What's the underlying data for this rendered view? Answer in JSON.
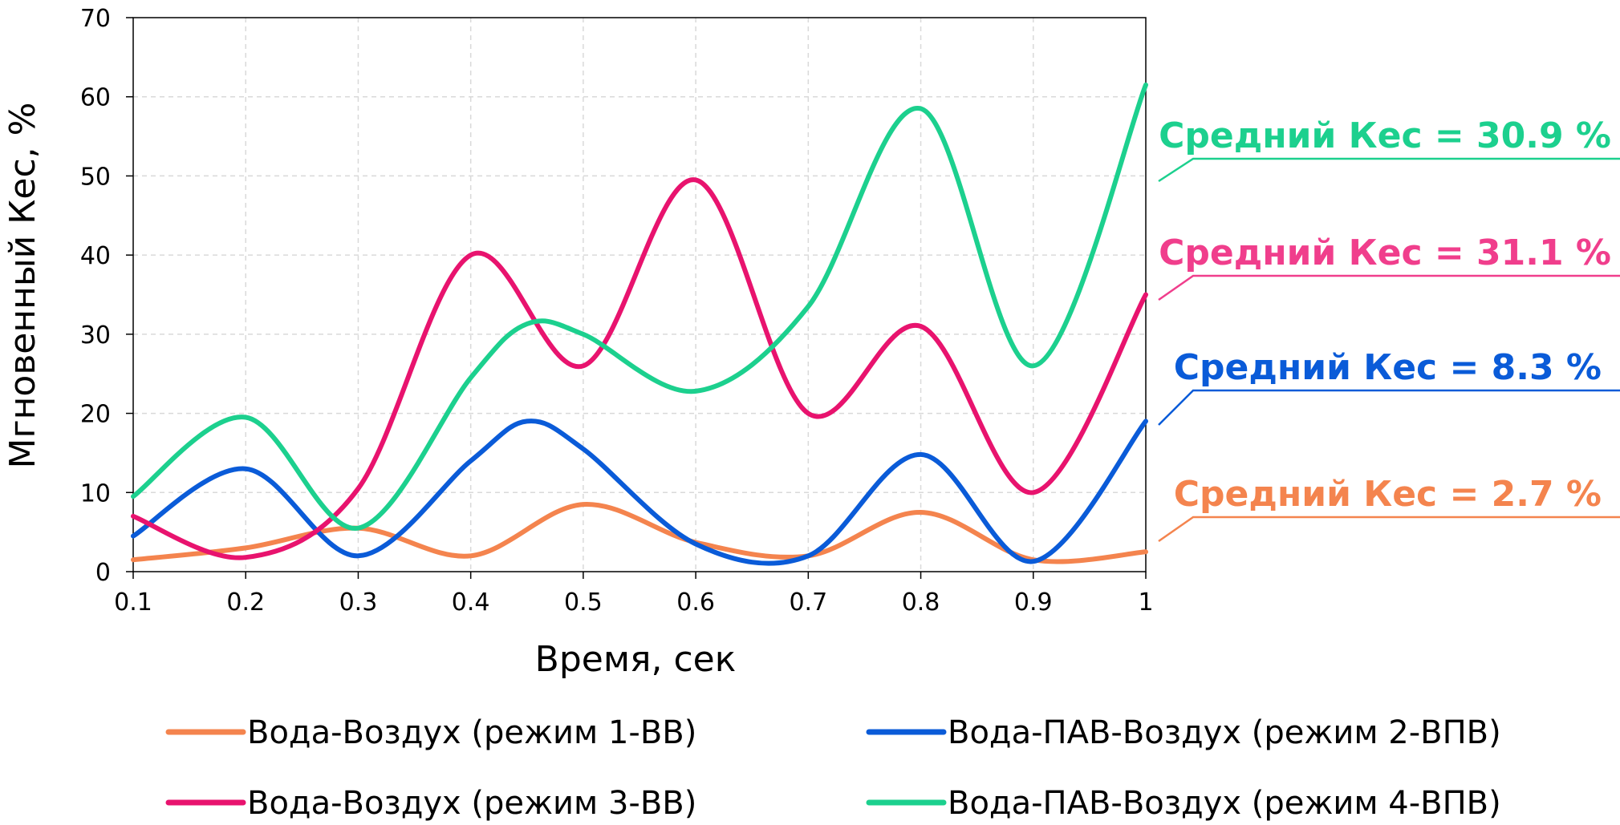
{
  "chart_data": {
    "type": "line",
    "xlabel": "Время, сек",
    "ylabel": "Мгновенный Кес, %",
    "xlim": [
      0.1,
      1.0
    ],
    "ylim": [
      0,
      70
    ],
    "x_ticks": [
      0.1,
      0.2,
      0.3,
      0.4,
      0.5,
      0.6,
      0.7,
      0.8,
      0.9,
      1.0
    ],
    "x_tick_labels": [
      "0.1",
      "0.2",
      "0.3",
      "0.4",
      "0.5",
      "0.6",
      "0.7",
      "0.8",
      "0.9",
      "1"
    ],
    "y_ticks": [
      0,
      10,
      20,
      30,
      40,
      50,
      60,
      70
    ],
    "y_tick_labels": [
      "0",
      "10",
      "20",
      "30",
      "40",
      "50",
      "60",
      "70"
    ],
    "grid": true,
    "legend_position": "bottom",
    "series": [
      {
        "name": "Вода-Воздух (режим 1-ВВ)",
        "color": "#F4844E",
        "x": [
          0.1,
          0.2,
          0.3,
          0.4,
          0.5,
          0.6,
          0.7,
          0.8,
          0.9,
          1.0
        ],
        "y": [
          1.5,
          3.0,
          5.5,
          2.0,
          8.5,
          3.7,
          2.0,
          7.5,
          1.5,
          2.5
        ]
      },
      {
        "name": "Вода-ПАВ-Воздух (режим 2-ВПВ)",
        "color": "#0A5BD8",
        "x": [
          0.1,
          0.2,
          0.3,
          0.4,
          0.45,
          0.5,
          0.6,
          0.7,
          0.8,
          0.9,
          1.0
        ],
        "y": [
          4.5,
          13.0,
          2.0,
          14.0,
          19.0,
          15.5,
          3.5,
          2.0,
          14.8,
          1.3,
          19.0
        ]
      },
      {
        "name": "Вода-Воздух (режим 3-ВВ)",
        "color": "#E8136E",
        "x": [
          0.1,
          0.2,
          0.3,
          0.4,
          0.5,
          0.6,
          0.7,
          0.8,
          0.9,
          1.0
        ],
        "y": [
          7.0,
          1.8,
          10.5,
          40.0,
          26.0,
          49.5,
          20.0,
          31.0,
          10.0,
          35.0
        ]
      },
      {
        "name": "Вода-ПАВ-Воздух (режим 4-ВПВ)",
        "color": "#1CD08E",
        "x": [
          0.1,
          0.2,
          0.3,
          0.4,
          0.45,
          0.5,
          0.6,
          0.7,
          0.8,
          0.9,
          1.0
        ],
        "y": [
          9.5,
          19.5,
          5.5,
          24.5,
          31.3,
          30.0,
          22.8,
          33.5,
          58.5,
          26.0,
          61.5
        ]
      }
    ],
    "annotations": [
      {
        "text": "Средний Кес = 30.9 %",
        "color": "#1CD08E",
        "series": "Вода-ПАВ-Воздух (режим 4-ВПВ)"
      },
      {
        "text": "Средний Кес = 31.1 %",
        "color": "#F03E8C",
        "series": "Вода-Воздух (режим 3-ВВ)"
      },
      {
        "text": "Средний Кес = 8.3 %",
        "color": "#0A5BD8",
        "series": "Вода-ПАВ-Воздух (режим 2-ВПВ)"
      },
      {
        "text": "Средний Кес = 2.7 %",
        "color": "#F4844E",
        "series": "Вода-Воздух (режим 1-ВВ)"
      }
    ]
  }
}
